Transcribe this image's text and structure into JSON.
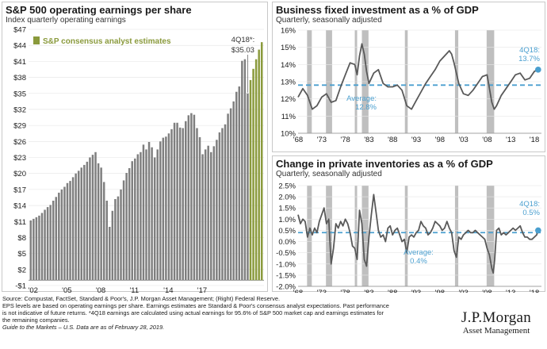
{
  "colors": {
    "bar_actual": "#7f7f7f",
    "bar_estimate": "#8a9a3c",
    "line": "#595959",
    "average": "#4a9fcf",
    "recession": "#bfbfbf",
    "accent_text": "#4a9fcf"
  },
  "chart_data": [
    {
      "type": "bar",
      "title": "S&P 500 operating earnings per share",
      "subtitle": "Index quarterly operating earnings",
      "legend": "S&P consensus analyst estimates",
      "legend_position": "top-left",
      "ylim": [
        -1,
        47
      ],
      "y_ticks": [
        -1,
        2,
        5,
        8,
        11,
        14,
        17,
        20,
        23,
        26,
        29,
        32,
        35,
        38,
        41,
        44,
        47
      ],
      "y_tick_labels": [
        "-$1",
        "$2",
        "$5",
        "$8",
        "$11",
        "$14",
        "$17",
        "$20",
        "$23",
        "$26",
        "$29",
        "$32",
        "$35",
        "$38",
        "$41",
        "$44",
        "$47"
      ],
      "x_tick_labels": [
        "'02",
        "'05",
        "'08",
        "'11",
        "'14",
        "'17"
      ],
      "x_tick_years": [
        2002,
        2005,
        2008,
        2011,
        2014,
        2017
      ],
      "start_year": 2002,
      "annotation": "4Q18*: $35.03",
      "annotation_lines": [
        "4Q18*:",
        "$35.03"
      ],
      "actual": [
        11.2,
        11.5,
        11.8,
        12.1,
        12.6,
        13.2,
        13.7,
        14.1,
        14.9,
        15.6,
        16.4,
        17.0,
        17.5,
        18.2,
        18.6,
        19.3,
        20.0,
        20.5,
        21.1,
        21.6,
        22.2,
        23.0,
        23.5,
        24.0,
        21.9,
        21.1,
        18.4,
        14.9,
        10.0,
        13.0,
        15.2,
        15.7,
        17.0,
        18.7,
        20.1,
        21.0,
        22.3,
        22.8,
        23.6,
        24.0,
        25.4,
        24.5,
        25.9,
        24.9,
        23.0,
        24.5,
        26.0,
        26.7,
        26.9,
        27.5,
        28.3,
        29.5,
        29.5,
        28.6,
        28.5,
        29.8,
        30.9,
        31.3,
        31.0,
        28.5,
        26.8,
        23.6,
        24.5,
        25.2,
        24.0,
        25.1,
        26.3,
        27.7,
        28.5,
        29.2,
        31.2,
        32.2,
        33.5,
        35.3,
        36.3,
        41.1,
        41.4,
        35.0
      ],
      "estimates": [
        37.5,
        39.6,
        41.4,
        43.2,
        44.6
      ]
    },
    {
      "type": "line",
      "title": "Business fixed investment as a % of GDP",
      "subtitle": "Quarterly, seasonally adjusted",
      "ylim": [
        10,
        16
      ],
      "y_ticks": [
        10,
        11,
        12,
        13,
        14,
        15,
        16
      ],
      "y_tick_labels": [
        "10%",
        "11%",
        "12%",
        "13%",
        "14%",
        "15%",
        "16%"
      ],
      "xlim": [
        1968,
        2019.5
      ],
      "x_ticks": [
        1968,
        1973,
        1978,
        1983,
        1988,
        1993,
        1998,
        2003,
        2008,
        2013,
        2018
      ],
      "x_tick_labels": [
        "'68",
        "'73",
        "'78",
        "'83",
        "'88",
        "'93",
        "'98",
        "'03",
        "'08",
        "'13",
        "'18"
      ],
      "average": 12.8,
      "average_label": [
        "Average:",
        "12.8%"
      ],
      "end_label": [
        "4Q18:",
        "13.7%"
      ],
      "recessions": [
        [
          1969.9,
          1970.9
        ],
        [
          1973.9,
          1975.2
        ],
        [
          1980.0,
          1980.5
        ],
        [
          1981.5,
          1982.9
        ],
        [
          1990.6,
          1991.2
        ],
        [
          2001.2,
          2001.9
        ],
        [
          2007.9,
          2009.5
        ]
      ],
      "x": [
        1968,
        1969,
        1970,
        1971,
        1972,
        1973,
        1974,
        1975,
        1976,
        1977,
        1978,
        1979,
        1980,
        1980.5,
        1981,
        1981.5,
        1982,
        1982.5,
        1983,
        1984,
        1985,
        1986,
        1987,
        1988,
        1989,
        1990,
        1991,
        1992,
        1993,
        1994,
        1995,
        1996,
        1997,
        1998,
        1999,
        2000,
        2000.5,
        2001,
        2002,
        2003,
        2004,
        2005,
        2006,
        2007,
        2008,
        2009,
        2009.5,
        2010,
        2011,
        2012,
        2013,
        2014,
        2015,
        2016,
        2017,
        2018,
        2018.8
      ],
      "y": [
        12.1,
        12.6,
        12.2,
        11.4,
        11.6,
        12.1,
        12.3,
        11.8,
        11.9,
        12.7,
        13.4,
        14.1,
        14.0,
        13.4,
        14.5,
        15.2,
        14.6,
        13.6,
        12.9,
        13.5,
        13.7,
        12.9,
        12.7,
        12.7,
        12.8,
        12.5,
        11.6,
        11.4,
        11.9,
        12.4,
        12.9,
        13.3,
        13.7,
        14.2,
        14.5,
        14.8,
        14.6,
        14.1,
        12.9,
        12.3,
        12.2,
        12.5,
        12.9,
        13.3,
        13.4,
        11.8,
        11.4,
        11.6,
        12.2,
        12.6,
        13.0,
        13.4,
        13.5,
        13.1,
        13.2,
        13.6,
        13.7
      ]
    },
    {
      "type": "line",
      "title": "Change in private inventories as a % of GDP",
      "subtitle": "Quarterly, seasonally adjusted",
      "ylim": [
        -2,
        2.5
      ],
      "y_ticks": [
        -2,
        -1.5,
        -1,
        -0.5,
        0,
        0.5,
        1,
        1.5,
        2,
        2.5
      ],
      "y_tick_labels": [
        "-2.0%",
        "-1.5%",
        "-1.0%",
        "-0.5%",
        "0.0%",
        "0.5%",
        "1.0%",
        "1.5%",
        "2.0%",
        "2.5%"
      ],
      "xlim": [
        1968,
        2019.5
      ],
      "x_ticks": [
        1968,
        1973,
        1978,
        1983,
        1988,
        1993,
        1998,
        2003,
        2008,
        2013,
        2018
      ],
      "x_tick_labels": [
        "'68",
        "'73",
        "'78",
        "'83",
        "'88",
        "'93",
        "'98",
        "'03",
        "'08",
        "'13",
        "'18"
      ],
      "average": 0.4,
      "average_label": [
        "Average:",
        "0.4%"
      ],
      "end_label": [
        "4Q18:",
        "0.5%"
      ],
      "recessions": [
        [
          1969.9,
          1970.9
        ],
        [
          1973.9,
          1975.2
        ],
        [
          1980.0,
          1980.5
        ],
        [
          1981.5,
          1982.9
        ],
        [
          1990.6,
          1991.2
        ],
        [
          2001.2,
          2001.9
        ],
        [
          2007.9,
          2009.5
        ]
      ],
      "x": [
        1968,
        1968.5,
        1969,
        1969.5,
        1970,
        1970.5,
        1971,
        1971.5,
        1972,
        1972.5,
        1973,
        1973.5,
        1974,
        1974.5,
        1975,
        1975.5,
        1976,
        1976.5,
        1977,
        1977.5,
        1978,
        1978.5,
        1979,
        1979.5,
        1980,
        1980.5,
        1981,
        1981.5,
        1982,
        1982.5,
        1983,
        1983.5,
        1984,
        1984.5,
        1985,
        1985.5,
        1986,
        1986.5,
        1987,
        1987.5,
        1988,
        1988.5,
        1989,
        1989.5,
        1990,
        1990.5,
        1991,
        1991.5,
        1992,
        1992.5,
        1993,
        1993.5,
        1994,
        1994.5,
        1995,
        1995.5,
        1996,
        1996.5,
        1997,
        1997.5,
        1998,
        1998.5,
        1999,
        1999.5,
        2000,
        2000.5,
        2001,
        2001.5,
        2002,
        2002.5,
        2003,
        2003.5,
        2004,
        2004.5,
        2005,
        2005.5,
        2006,
        2006.5,
        2007,
        2007.5,
        2008,
        2008.5,
        2009,
        2009.3,
        2009.6,
        2010,
        2010.5,
        2011,
        2011.5,
        2012,
        2012.5,
        2013,
        2013.5,
        2014,
        2014.5,
        2015,
        2015.5,
        2016,
        2016.5,
        2017,
        2017.5,
        2018,
        2018.5,
        2018.8
      ],
      "y": [
        1.2,
        0.8,
        1.0,
        0.9,
        0.2,
        0.6,
        0.3,
        0.6,
        0.4,
        0.9,
        1.2,
        1.5,
        0.8,
        1.0,
        -1.0,
        -0.3,
        0.8,
        0.6,
        0.9,
        0.7,
        1.0,
        0.8,
        0.4,
        -0.2,
        -0.3,
        -0.8,
        1.4,
        0.8,
        -0.8,
        -1.1,
        0.2,
        1.2,
        2.1,
        1.3,
        0.5,
        0.2,
        0.3,
        0.0,
        0.6,
        0.7,
        0.3,
        0.5,
        0.6,
        0.3,
        0.0,
        0.1,
        -0.5,
        0.2,
        0.3,
        0.2,
        0.4,
        0.5,
        0.9,
        0.7,
        0.6,
        0.3,
        0.4,
        0.6,
        0.9,
        0.8,
        0.7,
        0.5,
        0.6,
        0.9,
        0.6,
        0.4,
        -0.4,
        -0.7,
        0.2,
        0.1,
        0.3,
        0.4,
        0.5,
        0.4,
        0.4,
        0.5,
        0.4,
        0.3,
        0.2,
        0.1,
        -0.3,
        -0.6,
        -1.2,
        -1.4,
        -0.8,
        0.5,
        0.6,
        0.3,
        0.4,
        0.3,
        0.4,
        0.5,
        0.6,
        0.5,
        0.6,
        0.7,
        0.4,
        0.2,
        0.2,
        0.1,
        0.1,
        0.2,
        0.3,
        0.5
      ]
    }
  ],
  "footnote": [
    "Source: Compustat, FactSet, Standard & Poor's, J.P. Morgan Asset Management; (Right) Federal Reserve.",
    "EPS levels are based on operating earnings per share. Earnings estimates are Standard & Poor's consensus analyst expectations. Past performance",
    "is not indicative of future returns. *4Q18 earnings are calculated using actual earnings for 95.6% of S&P 500 market cap and earnings estimates for",
    "the remaining companies."
  ],
  "guide_line": "Guide to the Markets – U.S. Data are as of February 28, 2019.",
  "logo": {
    "line1": "J.P.Morgan",
    "line2": "Asset Management"
  }
}
